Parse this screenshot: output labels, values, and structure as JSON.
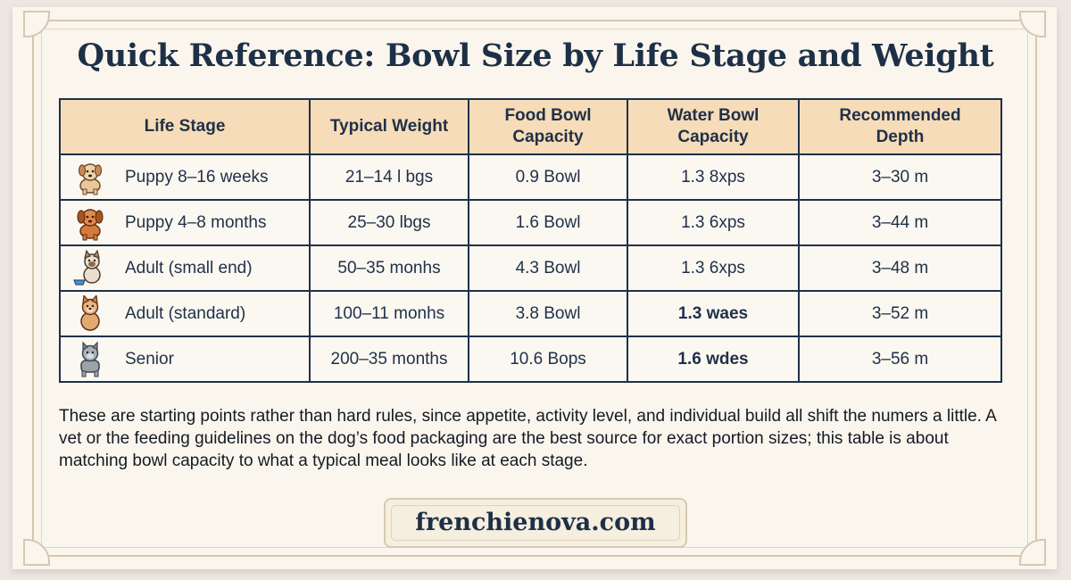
{
  "title": "Quick Reference: Bowl Size by Life Stage and Weight",
  "table": {
    "headers": [
      "Life Stage",
      "Typical Weight",
      "Food Bowl\nCapacity",
      "Water Bowl\nCapacity",
      "Recommended\nDepth"
    ],
    "rows": [
      {
        "icon": "puppy-icon",
        "stage": "Puppy 8–16 weeks",
        "weight": "21–14 l bgs",
        "food": "0.9 Bowl",
        "water": "1.3 8xps",
        "depth": "3–30 m"
      },
      {
        "icon": "puppy-icon",
        "stage": "Puppy 4–8 months",
        "weight": "25–30 lbgs",
        "food": "1.6 Bowl",
        "water": "1.3 6xps",
        "depth": "3–44 m"
      },
      {
        "icon": "dog-with-bowl-icon",
        "stage": "Adult (small end)",
        "weight": "50–35 monhs",
        "food": "4.3 Bowl",
        "water": "1.3 6xps",
        "depth": "3–48 m"
      },
      {
        "icon": "adult-dog-icon",
        "stage": "Adult (standard)",
        "weight": "100–11 monhs",
        "food": "3.8 Bowl",
        "water": "1.3 waes",
        "depth": "3–52 m"
      },
      {
        "icon": "senior-dog-icon",
        "stage": "Senior",
        "weight": "200–35 months",
        "food": "10.6 Bops",
        "water": "1.6 wdes",
        "depth": "3–56 m"
      }
    ]
  },
  "note": "These are starting points rather than hard rules, since appetite, activity level, and individual build all shift the numers a little. A vet or the feeding guidelines on the dog’s food packaging are the best source for exact portion sizes; this table is about matching bowl capacity to what a typical meal looks like at each stage.",
  "site": "frenchienova.com",
  "colors": {
    "header_fill": "#f6dcb8",
    "ink": "#1f3048",
    "background": "#faf6ee",
    "frame": "#d7c7ae"
  }
}
